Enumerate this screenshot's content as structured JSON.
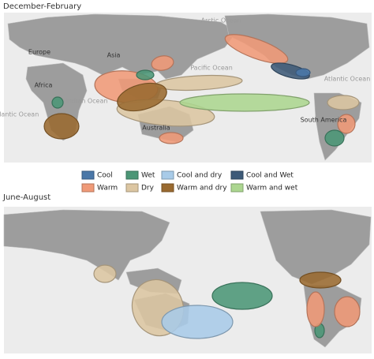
{
  "panels": [
    {
      "title": "December-February",
      "labels": [
        "Arctic Ocean",
        "Europe",
        "Asia",
        "Pacific Ocean",
        "Africa",
        "Atlantic Ocean",
        "Indian Ocean",
        "Atlantic Ocean",
        "Australia",
        "South America"
      ]
    },
    {
      "title": "June-August",
      "labels": []
    }
  ],
  "legend": [
    {
      "name": "Cool",
      "color": "#4a77a8"
    },
    {
      "name": "Wet",
      "color": "#4b9676"
    },
    {
      "name": "Cool and dry",
      "color": "#a8cbe8"
    },
    {
      "name": "Cool and Wet",
      "color": "#3d5a78"
    },
    {
      "name": "Warm",
      "color": "#f09a78"
    },
    {
      "name": "Dry",
      "color": "#dcc6a2"
    },
    {
      "name": "Warm and dry",
      "color": "#9a6a30"
    },
    {
      "name": "Warm and wet",
      "color": "#acd690"
    }
  ]
}
